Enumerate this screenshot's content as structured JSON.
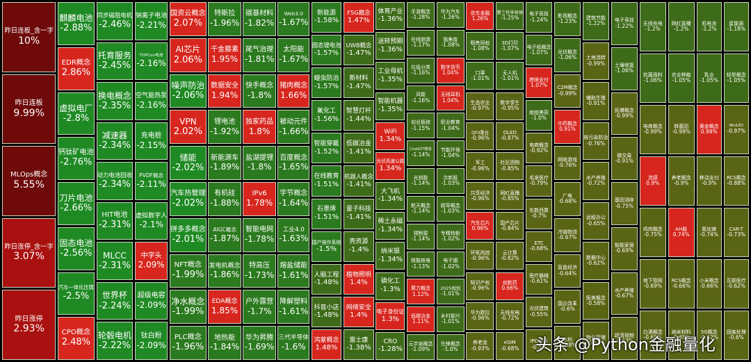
{
  "chart_data": {
    "type": "treemap",
    "columns": [
      {
        "size": "xl",
        "cells": [
          [
            "昨日连板_含一字",
            "10%"
          ],
          [
            "昨日连板",
            "9.99%"
          ],
          [
            "MLOps概念",
            "5.55%"
          ],
          [
            "昨日涨停_含一字",
            "3.07%"
          ],
          [
            "昨日涨停",
            "2.93%"
          ]
        ]
      },
      {
        "size": "lg",
        "cells": [
          [
            "麒麟电池",
            "-2.88%"
          ],
          [
            "EDR概念",
            "2.86%"
          ],
          [
            "虚拟电厂",
            "-2.8%"
          ],
          [
            "钙钛矿电池",
            "-2.76%"
          ],
          [
            "刀片电池",
            "-2.66%"
          ],
          [
            "固态电池",
            "-2.56%"
          ],
          [
            "汽车一体化压铸",
            "-2.5%"
          ],
          [
            "CPO概念",
            "2.48%"
          ]
        ]
      },
      {
        "size": "lg",
        "cells": [
          [
            "同步磁阻电机",
            "-2.46%"
          ],
          [
            "托育服务",
            "-2.45%"
          ],
          [
            "换电概念",
            "-2.35%"
          ],
          [
            "减速器",
            "-2.34%"
          ],
          [
            "动力电池回收",
            "-2.34%"
          ],
          [
            "HIT电池",
            "-2.31%"
          ],
          [
            "MLCC",
            "-2.31%"
          ],
          [
            "世界杯",
            "-2.24%"
          ],
          [
            "轮毂电机",
            "-2.22%"
          ]
        ]
      },
      {
        "size": "md",
        "cells": [
          [
            "钠离子电池",
            "-2.21%"
          ],
          [
            "TOPCon电池",
            "-2.16%"
          ],
          [
            "空气能热泵",
            "-2.16%"
          ],
          [
            "充电桩",
            "-2.15%"
          ],
          [
            "PVDF概念",
            "-2.11%"
          ],
          [
            "虚拟数字人",
            "-2.1%"
          ],
          [
            "中字头",
            "2.09%"
          ],
          [
            "超级电容",
            "-2.09%"
          ],
          [
            "钛白粉",
            "-2.09%"
          ]
        ]
      },
      {
        "size": "lg",
        "cells": [
          [
            "国资云概念",
            "2.07%"
          ],
          [
            "AI芯片",
            "2.06%"
          ],
          [
            "噪声防治",
            "-2.06%"
          ],
          [
            "VPN",
            "2.02%"
          ],
          [
            "储能",
            "-2.02%"
          ],
          [
            "汽车热管理",
            "-2.02%"
          ],
          [
            "拼多多概念",
            "-2.01%"
          ],
          [
            "NFT概念",
            "-1.99%"
          ],
          [
            "净水概念",
            "-1.99%"
          ],
          [
            "PLC概念",
            "-1.96%"
          ]
        ]
      },
      {
        "size": "md",
        "cells": [
          [
            "特斯拉",
            "-1.96%"
          ],
          [
            "千金藤素",
            "1.95%"
          ],
          [
            "数据安全",
            "1.94%"
          ],
          [
            "锂电池",
            "-1.92%"
          ],
          [
            "新能源车",
            "-1.89%"
          ],
          [
            "有机硅",
            "-1.88%"
          ],
          [
            "AIGC概念",
            "-1.87%"
          ],
          [
            "发电机概念",
            "-1.86%"
          ],
          [
            "EDA概念",
            "1.85%"
          ],
          [
            "地热能",
            "-1.84%"
          ]
        ]
      },
      {
        "size": "md",
        "cells": [
          [
            "碳基材料",
            "-1.82%"
          ],
          [
            "尾气治理",
            "-1.81%"
          ],
          [
            "快手概念",
            "-1.8%"
          ],
          [
            "独家药品",
            "1.8%"
          ],
          [
            "盐湖提锂",
            "-1.8%"
          ],
          [
            "IPv6",
            "1.78%"
          ],
          [
            "智能电网",
            "-1.78%"
          ],
          [
            "特高压",
            "-1.73%"
          ],
          [
            "户外露营",
            "-1.7%"
          ],
          [
            "华为昇腾",
            "-1.69%"
          ]
        ]
      },
      {
        "size": "md",
        "cells": [
          [
            "Web3.0",
            "-1.67%"
          ],
          [
            "太阳能",
            "-1.67%"
          ],
          [
            "猪肉概念",
            "1.66%"
          ],
          [
            "被动元件",
            "-1.66%"
          ],
          [
            "百度概念",
            "-1.65%"
          ],
          [
            "字节概念",
            "-1.64%"
          ],
          [
            "工业4.0",
            "-1.63%"
          ],
          [
            "熔盐储能",
            "-1.61%"
          ],
          [
            "降解塑料",
            "-1.61%"
          ],
          [
            "三代半导体",
            "-1.6%"
          ]
        ]
      },
      {
        "size": "sm",
        "cells": [
          [
            "新能源",
            "-1.58%"
          ],
          [
            "固态锂电池",
            "-1.57%"
          ],
          [
            "蝗虫防治",
            "-1.57%"
          ],
          [
            "氟化工",
            "-1.56%"
          ],
          [
            "智能穿戴",
            "-1.52%"
          ],
          [
            "在线教育",
            "-1.51%"
          ],
          [
            "石墨烯",
            "-1.51%"
          ],
          [
            "国产操作系统",
            "-1.5%"
          ],
          [
            "人脑工程",
            "-1.48%"
          ],
          [
            "抖音小店",
            "-1.48%"
          ],
          [
            "鸿蒙概念",
            "1.48%"
          ]
        ]
      },
      {
        "size": "sm",
        "cells": [
          [
            "F5G概念",
            "1.47%"
          ],
          [
            "UWB概念",
            "-1.47%"
          ],
          [
            "新材料",
            "-1.47%"
          ],
          [
            "智慧灯杆",
            "-1.44%"
          ],
          [
            "低碳冶金",
            "-1.41%"
          ],
          [
            "机器人概念",
            "-1.41%"
          ],
          [
            "量子科技",
            "-1.41%"
          ],
          [
            "壳资源",
            "-1.4%"
          ],
          [
            "植物照明",
            "1.4%"
          ],
          [
            "网络安全",
            "1.4%"
          ],
          [
            "富士康",
            "-1.38%"
          ]
        ]
      },
      {
        "size": "sm",
        "cells": [
          [
            "体育产业",
            "-1.36%"
          ],
          [
            "送转预期",
            "-1.36%"
          ],
          [
            "工业母机",
            "-1.35%"
          ],
          [
            "智能机器",
            "-1.35%"
          ],
          [
            "WiFi",
            "1.34%"
          ],
          [
            "光伏高速公路",
            "1.34%"
          ],
          [
            "大飞机",
            "-1.34%"
          ],
          [
            "稀土永磁",
            "-1.34%"
          ],
          [
            "纳米银",
            "-1.34%"
          ],
          [
            "磷化工",
            "-1.3%"
          ],
          [
            "电子身份证",
            "1.3%"
          ],
          [
            "CRO",
            "-1.28%"
          ]
        ]
      },
      {
        "size": "xs",
        "cells": [
          [
            "手游概念",
            "-1.28%"
          ],
          [
            "在线旅游",
            "-1.17%"
          ],
          [
            "垃圾分类",
            "-1.16%"
          ],
          [
            "风能",
            "-1.16%"
          ],
          [
            "创业板综",
            "-1.15%"
          ],
          [
            "ChatGPT概念",
            "-1.14%"
          ],
          [
            "光刻胶",
            "-1.14%"
          ],
          [
            "航天概念",
            "-1.14%"
          ],
          [
            "预制菜",
            "-1.14%"
          ],
          [
            "核能核电",
            "-1.13%"
          ],
          [
            "算力概念",
            "1.12%"
          ],
          [
            "低碳冶金",
            "1.11%"
          ],
          [
            "元宇宙概念",
            "-1.09%"
          ]
        ]
      },
      {
        "size": "xs",
        "cells": [
          [
            "华为汽车",
            "-1.26%"
          ],
          [
            "独角兽",
            "-1.08%"
          ],
          [
            "数字货币",
            "1.04%"
          ],
          [
            "无线耳机",
            "1.04%"
          ],
          [
            "职业教育",
            "-1.04%"
          ],
          [
            "节能环保",
            "-1.04%"
          ],
          [
            "次新股",
            "-1.03%"
          ],
          [
            "超导概念",
            "-1.03%"
          ],
          [
            "专精特新",
            "-1.02%"
          ],
          [
            "电子烟",
            "-1.02%"
          ],
          [
            "2025规划",
            "-1.01%"
          ],
          [
            "乡村振兴",
            "-1.01%"
          ],
          [
            "先锋概念",
            "-1.0%"
          ]
        ]
      },
      {
        "size": "xs",
        "cells": [
          [
            "京东金融",
            "1.26%"
          ],
          [
            "租售同权",
            "-1.08%"
          ],
          [
            "口罩",
            "-1.01%"
          ],
          [
            "生态农业",
            "-0.97%"
          ],
          [
            "QFII重仓",
            "-0.96%"
          ],
          [
            "军工",
            "-0.96%"
          ],
          [
            "共享经济",
            "-0.96%"
          ],
          [
            "汽车芯片",
            "0.96%"
          ],
          [
            "环氧丙烷",
            "-0.96%"
          ],
          [
            "知识产权",
            "-0.96%"
          ],
          [
            "华为欧拉",
            "-0.96%"
          ],
          [
            "养老金",
            "-0.93%"
          ]
        ]
      },
      {
        "size": "xs",
        "cells": [
          [
            "第三代半导体",
            "-1.25%"
          ],
          [
            "3D打印",
            "-1.07%"
          ],
          [
            "无人机",
            "-1.01%"
          ],
          [
            "数字孪生",
            "-0.95%"
          ],
          [
            "OLED",
            "-0.87%"
          ],
          [
            "社区团购",
            "-0.85%"
          ],
          [
            "网红直播",
            "-0.85%"
          ],
          [
            "国产芯片",
            "-0.84%"
          ],
          [
            "云计算",
            "-0.82%"
          ],
          [
            "创新药",
            "0.66%"
          ],
          [
            "无线充电",
            "-0.72%"
          ],
          [
            "eSIM",
            "-0.68%"
          ]
        ]
      },
      {
        "size": "xs",
        "cells": [
          [
            "电子竞技",
            "-1.24%"
          ],
          [
            "电子纸概念",
            "-1.07%"
          ],
          [
            "跨境支付",
            "1.07%"
          ],
          [
            "痘痘美容",
            "-1.0%"
          ],
          [
            "电商概念",
            "-0.92%"
          ],
          [
            "毛发医疗",
            "-0.79%"
          ],
          [
            "东数西算",
            "-0.7%"
          ],
          [
            "ETC",
            "-0.68%"
          ],
          [
            "医疗器械",
            "-0.61%"
          ],
          [
            "光伏建筑",
            "-0.55%"
          ],
          [
            "IPO受益",
            "-0.5%"
          ]
        ]
      },
      {
        "size": "xs",
        "cells": [
          [
            "影视概念",
            "-1.23%"
          ],
          [
            "光伏概念",
            "-1.06%"
          ],
          [
            "C2M概念",
            "-0.99%"
          ],
          [
            "中药概念",
            "0.91%"
          ],
          [
            "网络游戏",
            "-0.76%"
          ],
          [
            "广电",
            "-0.68%"
          ],
          [
            "冷链物流",
            "-0.67%"
          ],
          [
            "盲盒经济",
            "-0.64%"
          ],
          [
            "国企改革",
            "-0.6%"
          ],
          [
            "水利",
            "-0.58%"
          ]
        ]
      },
      {
        "size": "xs",
        "cells": [
          [
            "建筑节能",
            "-1.22%"
          ],
          [
            "土地流转",
            "-0.99%"
          ],
          [
            "辅助生殖",
            "-0.91%"
          ],
          [
            "核污染防治",
            "-0.76%"
          ],
          [
            "水产养殖",
            "-0.72%"
          ],
          [
            "远程办公",
            "-0.65%"
          ],
          [
            "数据中心",
            "-0.62%"
          ],
          [
            "医美概念",
            "-0.58%"
          ],
          [
            "物业管理",
            "-0.52%"
          ]
        ]
      },
      {
        "size": "xs",
        "cells": [
          [
            "电子竞技",
            "-1.22%"
          ],
          [
            "土壤修复",
            "-1.06%"
          ],
          [
            "民爆概念",
            "-0.99%"
          ],
          [
            "碳交易",
            "-0.91%"
          ],
          [
            "基因测序",
            "-0.75%"
          ],
          [
            "智能家居",
            "-0.69%"
          ],
          [
            "水产养殖",
            "-0.67%"
          ],
          [
            "超清视频",
            "-0.63%"
          ]
        ]
      },
      {
        "size": "xs",
        "cells": [
          [
            "无线充电",
            "-1.2%"
          ],
          [
            "抗菌面料",
            "-1.06%"
          ],
          [
            "电商概念",
            "-0.99%"
          ],
          [
            "流感",
            "0.9%"
          ],
          [
            "鸡肉概念",
            "-0.75%"
          ],
          [
            "地下管网",
            "-0.69%"
          ],
          [
            "白酒概念",
            "-0.65%"
          ]
        ]
      },
      {
        "size": "xs",
        "cells": [
          [
            "网红直播",
            "-1.2%"
          ],
          [
            "农业种植",
            "-1.05%"
          ],
          [
            "转基因",
            "-0.99%"
          ],
          [
            "养老概念",
            "-0.9%"
          ],
          [
            "AH股",
            "0.74%"
          ],
          [
            "RCS概念",
            "-0.66%"
          ],
          [
            "纳米材料",
            "-0.65%"
          ]
        ]
      },
      {
        "size": "xs",
        "cells": [
          [
            "机电池",
            "-1.2%"
          ],
          [
            "乳业",
            "-1.05%"
          ],
          [
            "黄金概念",
            "0.98%"
          ],
          [
            "移动支付",
            "-0.9%"
          ],
          [
            "氮化镓",
            "-0.74%"
          ],
          [
            "小米概念",
            "-0.66%"
          ],
          [
            "5G概念",
            "-0.62%"
          ]
        ]
      },
      {
        "size": "xs",
        "cells": [
          [
            "星能源",
            "-1.18%"
          ],
          [
            "轻型概念",
            "-1.05%"
          ],
          [
            "MiniLED",
            "-0.97%"
          ],
          [
            "RCS概念",
            "-0.88%"
          ],
          [
            "CAR-T",
            "-0.73%"
          ],
          [
            "互联医疗",
            "-0.62%"
          ],
          [
            "固废处理",
            "-0.6%"
          ]
        ]
      }
    ],
    "watermark": "头条 @Python金融量化"
  }
}
